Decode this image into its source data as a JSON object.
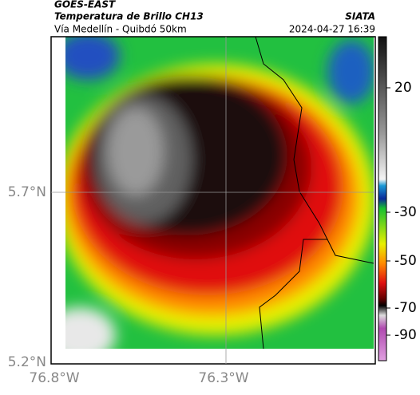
{
  "header": {
    "satellite": "GOES-EAST",
    "product": "Temperatura de Brillo CH13",
    "region": "Vía Medellín - Quibdó 50km",
    "source": "SIATA",
    "datetime": "2024-04-27 16:39"
  },
  "axes": {
    "lat_labels": [
      "5.7°N",
      "5.2°N"
    ],
    "lon_labels": [
      "76.8°W",
      "76.3°W"
    ]
  },
  "colorbar": {
    "ticks": [
      20,
      -30,
      -50,
      -70,
      -90
    ]
  }
}
